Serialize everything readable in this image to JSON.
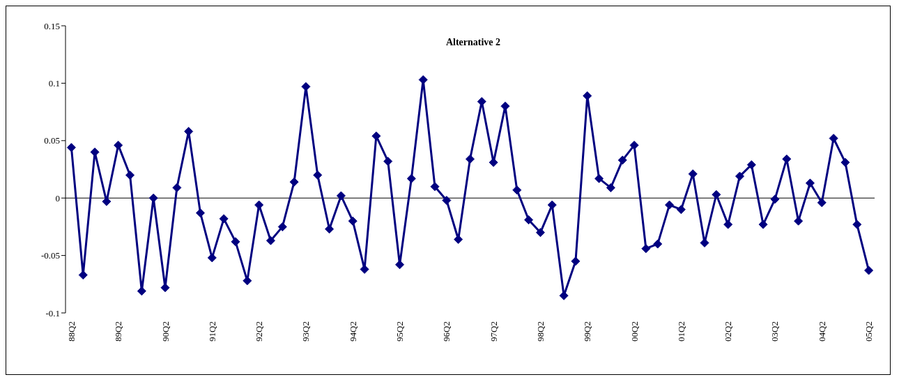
{
  "chart_data": {
    "type": "line",
    "title": "Alternative 2",
    "categories": [
      "88Q2",
      null,
      null,
      null,
      "89Q2",
      null,
      null,
      null,
      "90Q2",
      null,
      null,
      null,
      "91Q2",
      null,
      null,
      null,
      "92Q2",
      null,
      null,
      null,
      "93Q2",
      null,
      null,
      null,
      "94Q2",
      null,
      null,
      null,
      "95Q2",
      null,
      null,
      null,
      "96Q2",
      null,
      null,
      null,
      "97Q2",
      null,
      null,
      null,
      "98Q2",
      null,
      null,
      null,
      "99Q2",
      null,
      null,
      null,
      "00Q2",
      null,
      null,
      null,
      "01Q2",
      null,
      null,
      null,
      "02Q2",
      null,
      null,
      null,
      "03Q2",
      null,
      null,
      null,
      "04Q2",
      null,
      null,
      null,
      "05Q2"
    ],
    "series": [
      {
        "color": "#000080",
        "values": [
          0.044,
          -0.067,
          0.04,
          -0.003,
          0.046,
          0.02,
          -0.081,
          0.0,
          -0.078,
          0.009,
          0.058,
          -0.013,
          -0.052,
          -0.018,
          -0.038,
          -0.072,
          -0.006,
          -0.037,
          -0.025,
          0.014,
          0.097,
          0.02,
          -0.027,
          0.002,
          -0.02,
          -0.062,
          0.054,
          0.032,
          -0.058,
          0.017,
          0.103,
          0.01,
          -0.002,
          -0.036,
          0.034,
          0.084,
          0.031,
          0.08,
          0.007,
          -0.019,
          -0.03,
          -0.006,
          -0.085,
          -0.055,
          0.089,
          0.017,
          0.009,
          0.033,
          0.046,
          -0.044,
          -0.04,
          -0.006,
          -0.01,
          0.021,
          -0.039,
          0.003,
          -0.023,
          0.019,
          0.029,
          -0.023,
          -0.001,
          0.034,
          -0.02,
          0.013,
          -0.004,
          0.052,
          0.031,
          -0.023,
          -0.063
        ]
      }
    ],
    "ylim": [
      -0.1,
      0.15
    ],
    "yticks": [
      -0.1,
      -0.05,
      0,
      0.05,
      0.1,
      0.15
    ],
    "ref_lines": [
      {
        "axis": "y",
        "value": 0,
        "color": "#000000"
      }
    ],
    "grid": false,
    "legend": false,
    "marker": "diamond",
    "line_style": "solid"
  }
}
